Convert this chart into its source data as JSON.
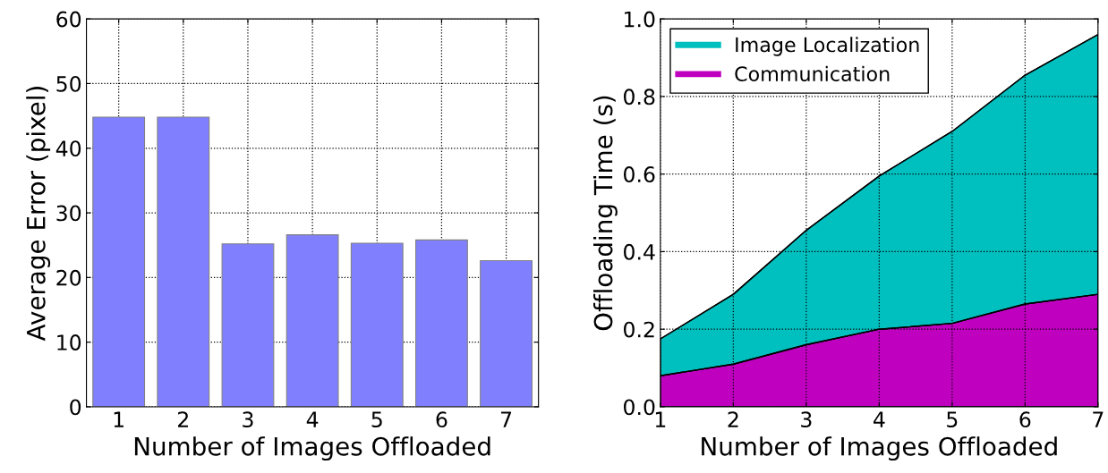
{
  "chart_data": [
    {
      "type": "bar",
      "xlabel": "Number of Images Offloaded",
      "ylabel": "Average Error (pixel)",
      "categories": [
        "1",
        "2",
        "3",
        "4",
        "5",
        "6",
        "7"
      ],
      "values": [
        44.8,
        44.8,
        25.2,
        26.6,
        25.3,
        25.8,
        22.6
      ],
      "color": "#8080ff",
      "ylim": [
        0,
        60
      ],
      "yticks": [
        0,
        10,
        20,
        30,
        40,
        50,
        60
      ],
      "grid": true,
      "legend": false
    },
    {
      "type": "area",
      "stacked": true,
      "xlabel": "Number of Images Offloaded",
      "ylabel": "Offloading Time (s)",
      "x": [
        1,
        2,
        3,
        4,
        5,
        6,
        7
      ],
      "series": [
        {
          "name": "Communication",
          "color": "#bf00bf",
          "values": [
            0.08,
            0.11,
            0.16,
            0.2,
            0.215,
            0.265,
            0.29
          ]
        },
        {
          "name": "Image Localization",
          "color": "#00bfbf",
          "values": [
            0.095,
            0.18,
            0.295,
            0.395,
            0.495,
            0.59,
            0.67
          ]
        }
      ],
      "xlim": [
        1,
        7
      ],
      "xticks": [
        1,
        2,
        3,
        4,
        5,
        6,
        7
      ],
      "ylim": [
        0,
        1
      ],
      "yticks": [
        {
          "value": 0,
          "label": "0.0"
        },
        {
          "value": 0.2,
          "label": "0.2"
        },
        {
          "value": 0.4,
          "label": "0.4"
        },
        {
          "value": 0.6,
          "label": "0.6"
        },
        {
          "value": 0.8,
          "label": "0.8"
        },
        {
          "value": 1,
          "label": "1.0"
        }
      ],
      "grid": true,
      "legend": "top left"
    }
  ]
}
